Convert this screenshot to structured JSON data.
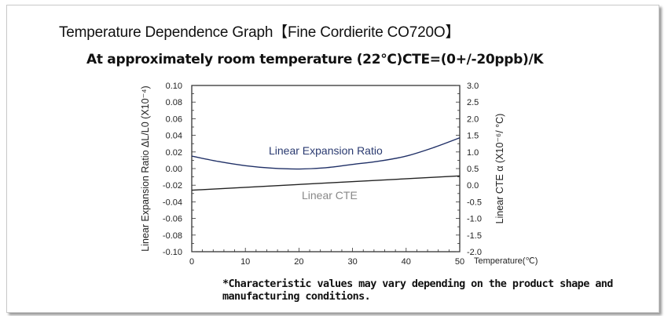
{
  "title": "Temperature Dependence Graph【Fine Cordierite CO720O】",
  "subtitle": "At approximately room temperature (22℃)CTE=(0+/-20ppb)/K",
  "note": "*Characteristic values may vary depending on the product shape and manufacturing conditions.",
  "chart_data": {
    "type": "line",
    "xlabel": "Temperature(℃)",
    "ylabel_left": "Linear Expansion Ratio ΔL/L0 (X10⁻⁴)",
    "ylabel_right": "Linear CTE α (X10⁻⁶/ °C)",
    "xlim": [
      0,
      50
    ],
    "ylim_left": [
      -0.1,
      0.1
    ],
    "ylim_right": [
      -2.0,
      3.0
    ],
    "x_ticks": [
      "0",
      "10",
      "20",
      "30",
      "40",
      "50"
    ],
    "y_left_ticks": [
      "0.10",
      "0.08",
      "0.06",
      "0.04",
      "0.02",
      "0.00",
      "-0.02",
      "-0.04",
      "-0.06",
      "-0.08",
      "-0.10"
    ],
    "y_right_ticks": [
      "3.0",
      "2.5",
      "2.0",
      "1.5",
      "1.0",
      "0.5",
      "0.0",
      "-0.5",
      "-1.0",
      "-1.5",
      "-2.0"
    ],
    "grid": false,
    "series": [
      {
        "name": "Linear Expansion Ratio",
        "axis": "left",
        "color": "#1f2f66",
        "x": [
          0,
          5,
          10,
          15,
          20,
          25,
          30,
          35,
          40,
          45,
          50
        ],
        "y": [
          0.015,
          0.0085,
          0.0035,
          0.0005,
          -0.0005,
          0.001,
          0.005,
          0.009,
          0.015,
          0.025,
          0.037
        ]
      },
      {
        "name": "Linear CTE",
        "axis": "right",
        "color": "#222222",
        "x": [
          0,
          50
        ],
        "y": [
          -0.15,
          0.28
        ]
      }
    ],
    "annotations": [
      {
        "text": "Linear Expansion Ratio",
        "color": "#2a3a70"
      },
      {
        "text": "Linear CTE",
        "color": "#888888"
      }
    ]
  }
}
